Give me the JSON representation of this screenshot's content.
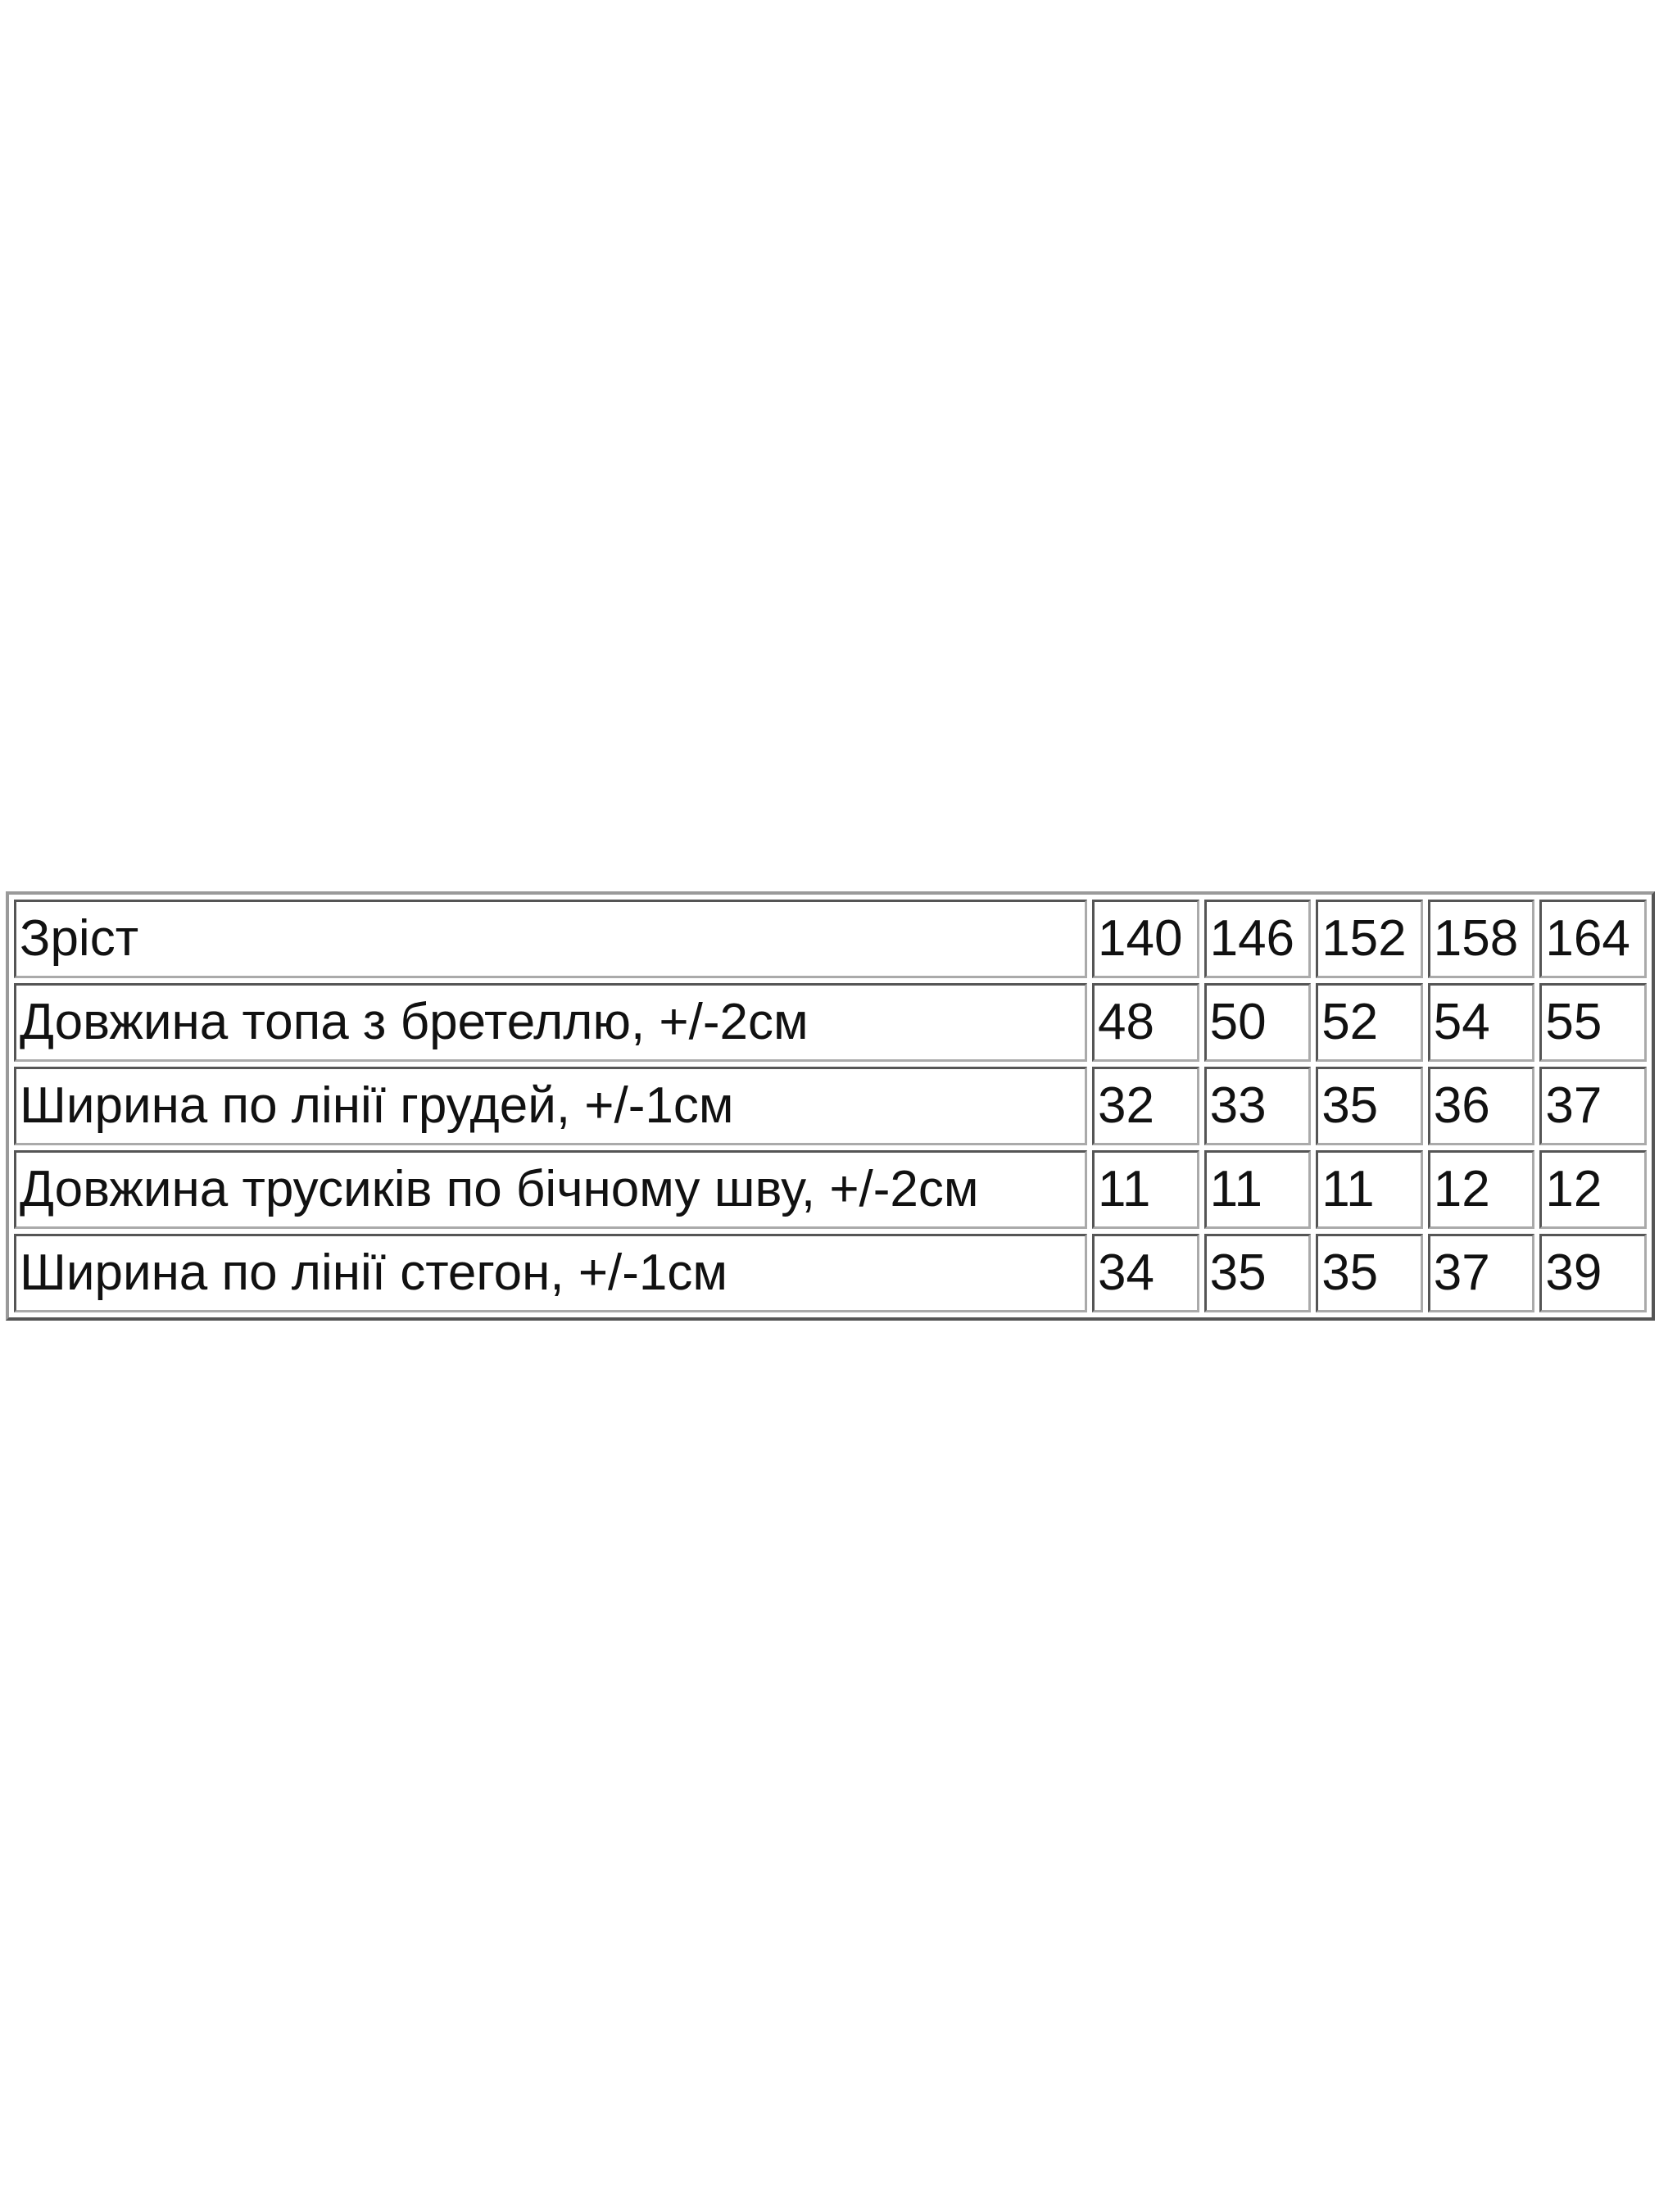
{
  "table": {
    "rows": [
      [
        "Зріст",
        140,
        146,
        152,
        158,
        164
      ],
      [
        "Довжина топа з бретеллю, +/-2см",
        48,
        50,
        52,
        54,
        55
      ],
      [
        "Ширина по лінії грудей, +/-1см",
        32,
        33,
        35,
        36,
        37
      ],
      [
        "Довжина трусиків по бічному шву, +/-2см",
        11,
        11,
        11,
        12,
        12
      ],
      [
        "Ширина по лінії стегон, +/-1см",
        34,
        35,
        35,
        37,
        39
      ]
    ]
  }
}
